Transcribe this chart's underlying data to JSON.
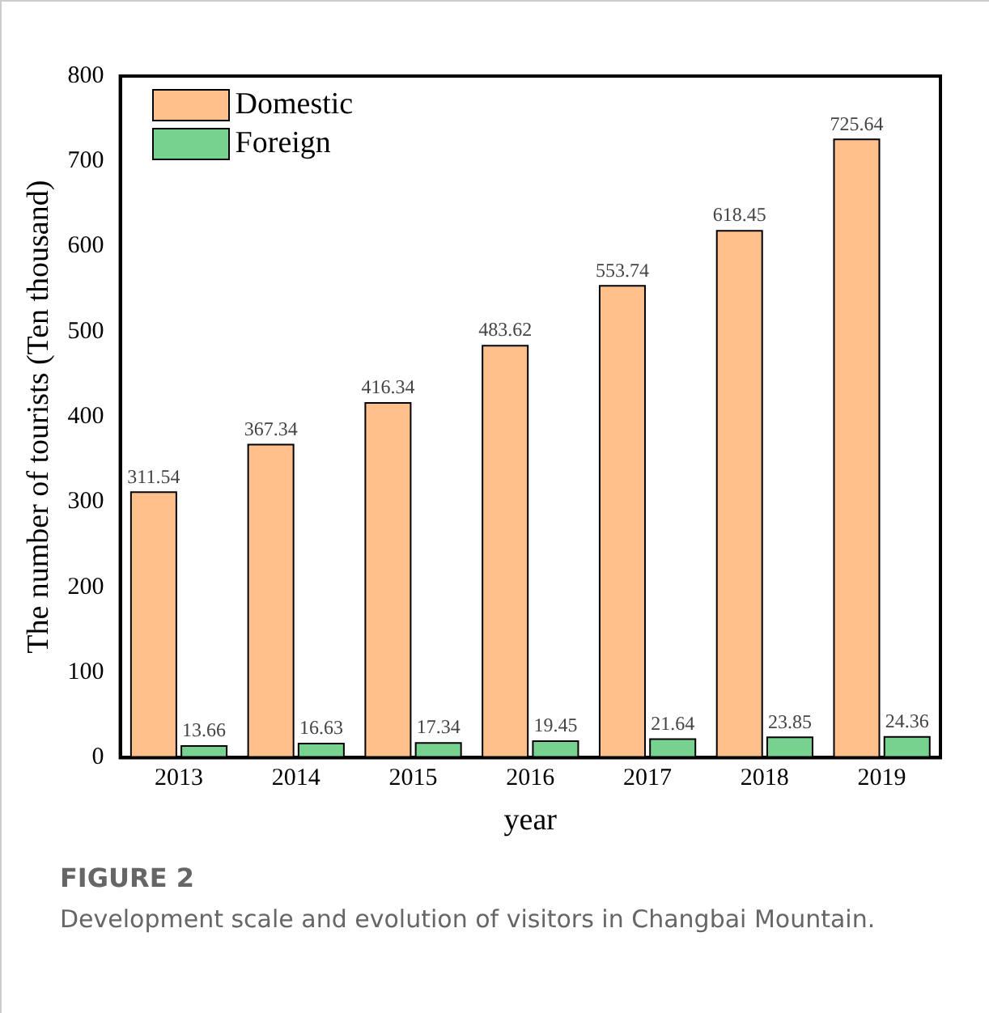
{
  "chart_data": {
    "type": "bar",
    "title": "FIGURE 2",
    "subtitle": "Development scale and evolution of visitors in Changbai Mountain.",
    "xlabel": "year",
    "ylabel": "The number of tourists (Ten thousand)",
    "categories": [
      "2013",
      "2014",
      "2015",
      "2016",
      "2017",
      "2018",
      "2019"
    ],
    "series": [
      {
        "name": "Domestic",
        "color": "#ffc08c",
        "values": [
          311.54,
          367.34,
          416.34,
          483.62,
          553.74,
          618.45,
          725.64
        ]
      },
      {
        "name": "Foreign",
        "color": "#77d18f",
        "values": [
          13.66,
          16.63,
          17.34,
          19.45,
          21.64,
          23.85,
          24.36
        ]
      }
    ],
    "ylim": [
      0,
      800
    ],
    "yticks": [
      0,
      100,
      200,
      300,
      400,
      500,
      600,
      700,
      800
    ],
    "grid": false,
    "legend": "top left",
    "data_labels": true
  }
}
